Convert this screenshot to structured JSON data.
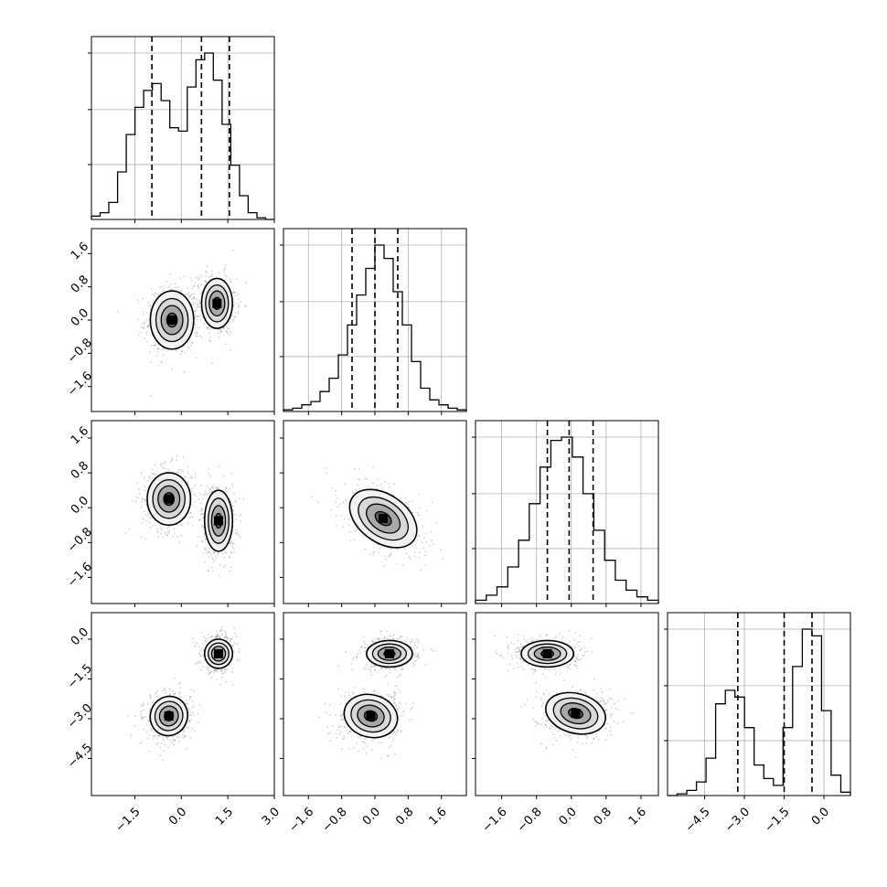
{
  "chart_data": {
    "type": "corner",
    "grid": true,
    "dimensions": [
      {
        "id": "x0",
        "range": [
          -2.9,
          3.0
        ],
        "ticks": [
          -1.5,
          0.0,
          1.5,
          3.0
        ],
        "tick_labels": [
          "−1.5",
          "0.0",
          "1.5",
          "3.0"
        ],
        "quantiles": [
          -0.95,
          0.65,
          1.55
        ]
      },
      {
        "id": "x1",
        "range": [
          -2.2,
          2.2
        ],
        "ticks": [
          -1.6,
          -0.8,
          0.0,
          0.8,
          1.6
        ],
        "tick_labels": [
          "−1.6",
          "−0.8",
          "0.0",
          "0.8",
          "1.6"
        ],
        "quantiles": [
          -0.55,
          0.0,
          0.55
        ]
      },
      {
        "id": "x2",
        "range": [
          -2.2,
          2.0
        ],
        "ticks": [
          -1.6,
          -0.8,
          0.0,
          0.8,
          1.6
        ],
        "tick_labels": [
          "−1.6",
          "−0.8",
          "0.0",
          "0.8",
          "1.6"
        ],
        "quantiles": [
          -0.55,
          -0.05,
          0.5
        ]
      },
      {
        "id": "x3",
        "range": [
          -5.9,
          1.0
        ],
        "ticks": [
          -4.5,
          -3.0,
          -1.5,
          0.0
        ],
        "tick_labels": [
          "−4.5",
          "−3.0",
          "−1.5",
          "0.0"
        ],
        "quantiles": [
          -3.25,
          -1.5,
          -0.45
        ]
      }
    ],
    "histograms": [
      {
        "dim": 0,
        "counts": [
          2,
          4,
          10,
          28,
          50,
          66,
          76,
          80,
          70,
          54,
          52,
          78,
          94,
          98,
          82,
          56,
          32,
          14,
          4,
          1,
          0
        ]
      },
      {
        "dim": 1,
        "counts": [
          1,
          2,
          4,
          6,
          12,
          20,
          34,
          52,
          70,
          86,
          100,
          92,
          72,
          52,
          30,
          14,
          7,
          4,
          2,
          1
        ]
      },
      {
        "dim": 2,
        "counts": [
          2,
          5,
          10,
          22,
          38,
          60,
          82,
          98,
          100,
          88,
          66,
          44,
          26,
          14,
          8,
          4,
          2
        ]
      },
      {
        "dim": 3,
        "counts": [
          0,
          1,
          3,
          8,
          22,
          54,
          62,
          58,
          40,
          18,
          10,
          6,
          40,
          76,
          98,
          94,
          50,
          12,
          2
        ]
      }
    ],
    "pairs": [
      {
        "x": 0,
        "y": 1,
        "clusters": [
          {
            "cx": -0.3,
            "cy": 0.0,
            "rx": 0.7,
            "ry": 0.7,
            "rot": 0
          },
          {
            "cx": 1.15,
            "cy": 0.4,
            "rx": 0.5,
            "ry": 0.6,
            "rot": 0
          }
        ]
      },
      {
        "x": 0,
        "y": 2,
        "clusters": [
          {
            "cx": -0.4,
            "cy": 0.2,
            "rx": 0.7,
            "ry": 0.6,
            "rot": 0
          },
          {
            "cx": 1.2,
            "cy": -0.3,
            "rx": 0.45,
            "ry": 0.7,
            "rot": 0
          }
        ]
      },
      {
        "x": 1,
        "y": 2,
        "clusters": [
          {
            "cx": 0.2,
            "cy": -0.25,
            "rx": 0.9,
            "ry": 0.55,
            "rot": -35
          }
        ]
      },
      {
        "x": 0,
        "y": 3,
        "clusters": [
          {
            "cx": 1.2,
            "cy": -0.55,
            "rx": 0.45,
            "ry": 0.55,
            "rot": 0
          },
          {
            "cx": -0.4,
            "cy": -2.9,
            "rx": 0.6,
            "ry": 0.75,
            "rot": -20
          }
        ]
      },
      {
        "x": 1,
        "y": 3,
        "clusters": [
          {
            "cx": 0.35,
            "cy": -0.55,
            "rx": 0.55,
            "ry": 0.5,
            "rot": 0
          },
          {
            "cx": -0.1,
            "cy": -2.9,
            "rx": 0.65,
            "ry": 0.8,
            "rot": -15
          }
        ]
      },
      {
        "x": 2,
        "y": 3,
        "clusters": [
          {
            "cx": -0.55,
            "cy": -0.55,
            "rx": 0.6,
            "ry": 0.5,
            "rot": 0
          },
          {
            "cx": 0.1,
            "cy": -2.8,
            "rx": 0.7,
            "ry": 0.75,
            "rot": -15
          }
        ]
      }
    ]
  }
}
